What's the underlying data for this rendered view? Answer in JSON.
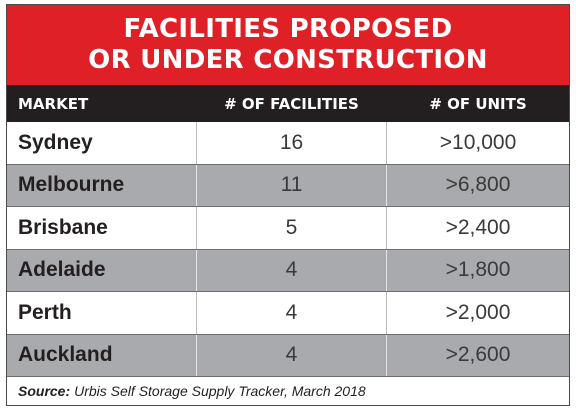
{
  "title": {
    "line1": "FACILITIES PROPOSED",
    "line2": "OR UNDER CONSTRUCTION"
  },
  "colors": {
    "title_bg": "#e02027",
    "header_bg": "#231f20",
    "row_alt": "#a9aaad"
  },
  "chart_data": {
    "type": "table",
    "title": "FACILITIES PROPOSED OR UNDER CONSTRUCTION",
    "columns": [
      "MARKET",
      "# OF FACILITIES",
      "# OF UNITS"
    ],
    "rows": [
      {
        "market": "Sydney",
        "facilities": "16",
        "units": ">10,000"
      },
      {
        "market": "Melbourne",
        "facilities": "11",
        "units": ">6,800"
      },
      {
        "market": "Brisbane",
        "facilities": "5",
        "units": ">2,400"
      },
      {
        "market": "Adelaide",
        "facilities": "4",
        "units": ">1,800"
      },
      {
        "market": "Perth",
        "facilities": "4",
        "units": ">2,000"
      },
      {
        "market": "Auckland",
        "facilities": "4",
        "units": ">2,600"
      }
    ]
  },
  "source": {
    "label": "Source:",
    "text": "Urbis Self Storage Supply Tracker, March 2018"
  }
}
